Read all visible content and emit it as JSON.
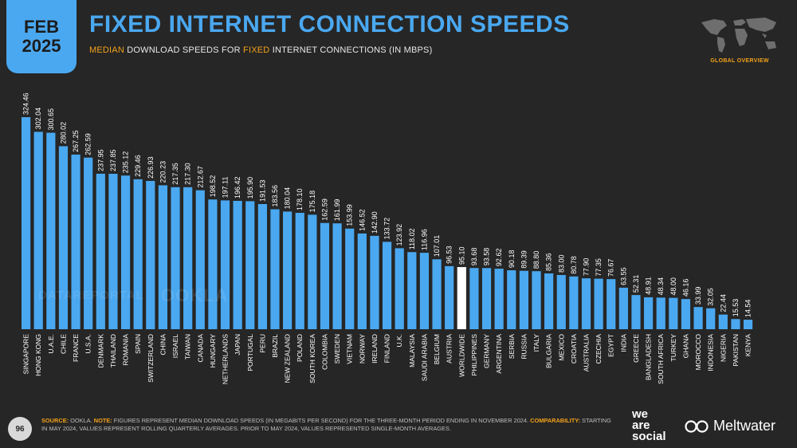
{
  "header": {
    "month": "FEB",
    "year": "2025",
    "title": "FIXED INTERNET CONNECTION SPEEDS",
    "subtitle_part1": "MEDIAN",
    "subtitle_part2": " DOWNLOAD SPEEDS FOR ",
    "subtitle_part3": "FIXED",
    "subtitle_part4": " INTERNET CONNECTIONS (IN MBPS)",
    "section_label": "GLOBAL OVERVIEW"
  },
  "watermarks": {
    "datareportal": "DATAREPORTAL",
    "ookla": "OOKLA"
  },
  "footer": {
    "page_number": "96",
    "source_label": "SOURCE:",
    "source_text": " OOKLA. ",
    "note_label": "NOTE:",
    "note_text": " FIGURES REPRESENT MEDIAN DOWNLOAD SPEEDS (IN MEGABITS PER SECOND) FOR THE THREE-MONTH PERIOD ENDING IN NOVEMBER 2024. ",
    "comparability_label": "COMPARABILITY:",
    "comparability_text": " STARTING IN MAY 2024, VALUES REPRESENT ROLLING QUARTERLY AVERAGES. PRIOR TO MAY 2024, VALUES REPRESENTED SINGLE-MONTH AVERAGES.",
    "brand1_line1": "we",
    "brand1_line2": "are",
    "brand1_line3": "social",
    "brand2": "Meltwater"
  },
  "colors": {
    "bar": "#4aa8f0",
    "highlight_bar": "#ffffff",
    "accent": "#f2a21a",
    "background": "#262626"
  },
  "chart_data": {
    "type": "bar",
    "title": "FIXED INTERNET CONNECTION SPEEDS",
    "subtitle": "MEDIAN DOWNLOAD SPEEDS FOR FIXED INTERNET CONNECTIONS (IN MBPS)",
    "highlight_category": "WORLDWIDE",
    "categories": [
      "SINGAPORE",
      "HONG KONG",
      "U.A.E.",
      "CHILE",
      "FRANCE",
      "U.S.A.",
      "DENMARK",
      "THAILAND",
      "ROMANIA",
      "SPAIN",
      "SWITZERLAND",
      "CHINA",
      "ISRAEL",
      "TAIWAN",
      "CANADA",
      "HUNGARY",
      "NETHERLANDS",
      "JAPAN",
      "PORTUGAL",
      "PERU",
      "BRAZIL",
      "NEW ZEALAND",
      "POLAND",
      "SOUTH KOREA",
      "COLOMBIA",
      "SWEDEN",
      "VIETNAM",
      "NORWAY",
      "IRELAND",
      "FINLAND",
      "U.K.",
      "MALAYSIA",
      "SAUDI ARABIA",
      "BELGIUM",
      "AUSTRIA",
      "WORLDWIDE",
      "PHILIPPINES",
      "GERMANY",
      "ARGENTINA",
      "SERBIA",
      "RUSSIA",
      "ITALY",
      "BULGARIA",
      "MEXICO",
      "CROATIA",
      "AUSTRALIA",
      "CZECHIA",
      "EGYPT",
      "INDIA",
      "GREECE",
      "BANGLADESH",
      "SOUTH AFRICA",
      "TURKEY",
      "GHANA",
      "MOROCCO",
      "INDONESIA",
      "NIGERIA",
      "PAKISTAN",
      "KENYA"
    ],
    "values": [
      324.46,
      302.04,
      300.65,
      280.02,
      267.25,
      262.59,
      237.95,
      237.85,
      235.12,
      229.46,
      226.93,
      220.23,
      217.35,
      217.3,
      212.67,
      198.52,
      197.11,
      196.42,
      195.9,
      191.53,
      183.56,
      180.04,
      178.1,
      175.18,
      162.59,
      161.99,
      153.99,
      146.52,
      142.9,
      133.72,
      123.92,
      118.02,
      116.96,
      107.01,
      96.53,
      95.1,
      93.68,
      93.58,
      92.62,
      90.18,
      89.39,
      88.8,
      85.36,
      83.0,
      80.78,
      77.9,
      77.35,
      76.67,
      63.55,
      52.31,
      48.91,
      48.34,
      48.0,
      46.16,
      33.99,
      32.05,
      22.44,
      15.53,
      14.54
    ],
    "labels": [
      "324.46",
      "302.04",
      "300.65",
      "280.02",
      "267.25",
      "262.59",
      "237.95",
      "237.85",
      "235.12",
      "229.46",
      "226.93",
      "220.23",
      "217.35",
      "217.30",
      "212.67",
      "198.52",
      "197.11",
      "196.42",
      "195.90",
      "191.53",
      "183.56",
      "180.04",
      "178.10",
      "175.18",
      "162.59",
      "161.99",
      "153.99",
      "146.52",
      "142.90",
      "133.72",
      "123.92",
      "118.02",
      "116.96",
      "107.01",
      "96.53",
      "95.10",
      "93.68",
      "93.58",
      "92.62",
      "90.18",
      "89.39",
      "88.80",
      "85.36",
      "83.00",
      "80.78",
      "77.90",
      "77.35",
      "76.67",
      "63.55",
      "52.31",
      "48.91",
      "48.34",
      "48.00",
      "46.16",
      "33.99",
      "32.05",
      "22.44",
      "15.53",
      "14.54"
    ],
    "ylim": [
      0,
      324.46
    ]
  }
}
